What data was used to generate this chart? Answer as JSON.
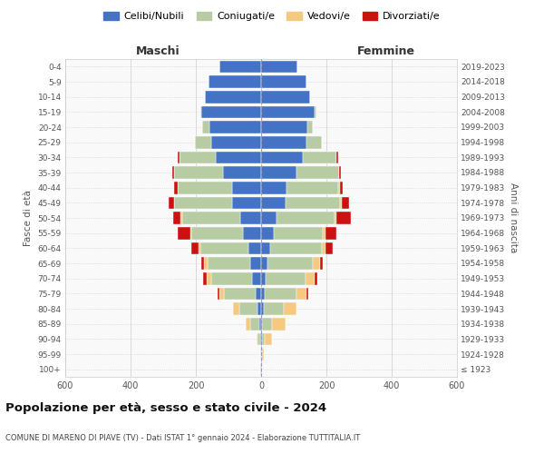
{
  "age_groups": [
    "100+",
    "95-99",
    "90-94",
    "85-89",
    "80-84",
    "75-79",
    "70-74",
    "65-69",
    "60-64",
    "55-59",
    "50-54",
    "45-49",
    "40-44",
    "35-39",
    "30-34",
    "25-29",
    "20-24",
    "15-19",
    "10-14",
    "5-9",
    "0-4"
  ],
  "birth_years": [
    "≤ 1923",
    "1924-1928",
    "1929-1933",
    "1934-1938",
    "1939-1943",
    "1944-1948",
    "1949-1953",
    "1954-1958",
    "1959-1963",
    "1964-1968",
    "1969-1973",
    "1974-1978",
    "1979-1983",
    "1984-1988",
    "1989-1993",
    "1994-1998",
    "1999-2003",
    "2004-2008",
    "2009-2013",
    "2014-2018",
    "2019-2023"
  ],
  "colors": {
    "celibi": "#4472c4",
    "coniugati": "#b8cca4",
    "vedovi": "#f5c97f",
    "divorziati": "#cc1111"
  },
  "males": {
    "celibi": [
      2,
      1,
      2,
      5,
      10,
      18,
      28,
      32,
      38,
      55,
      65,
      90,
      88,
      118,
      138,
      152,
      158,
      182,
      172,
      162,
      128
    ],
    "coniugati": [
      0,
      2,
      8,
      28,
      58,
      95,
      125,
      132,
      148,
      158,
      178,
      178,
      168,
      148,
      112,
      52,
      22,
      5,
      0,
      0,
      0
    ],
    "vedovi": [
      0,
      1,
      5,
      15,
      18,
      14,
      14,
      10,
      5,
      5,
      5,
      0,
      0,
      0,
      0,
      0,
      0,
      0,
      0,
      0,
      0
    ],
    "divorziati": [
      0,
      0,
      0,
      0,
      0,
      5,
      10,
      10,
      22,
      38,
      22,
      16,
      10,
      5,
      5,
      0,
      0,
      0,
      0,
      0,
      0
    ]
  },
  "females": {
    "celibi": [
      1,
      1,
      2,
      4,
      8,
      10,
      15,
      20,
      28,
      38,
      48,
      75,
      78,
      108,
      128,
      138,
      142,
      165,
      150,
      140,
      112
    ],
    "coniugati": [
      0,
      2,
      10,
      28,
      62,
      98,
      122,
      138,
      158,
      152,
      178,
      168,
      158,
      132,
      102,
      48,
      16,
      5,
      0,
      0,
      0
    ],
    "vedovi": [
      1,
      4,
      22,
      42,
      38,
      32,
      28,
      22,
      12,
      8,
      5,
      5,
      5,
      0,
      0,
      0,
      0,
      0,
      0,
      0,
      0
    ],
    "divorziati": [
      0,
      0,
      0,
      0,
      0,
      5,
      8,
      10,
      22,
      32,
      45,
      22,
      10,
      5,
      5,
      0,
      0,
      0,
      0,
      0,
      0
    ]
  },
  "title": "Popolazione per età, sesso e stato civile - 2024",
  "subtitle": "COMUNE DI MARENO DI PIAVE (TV) - Dati ISTAT 1° gennaio 2024 - Elaborazione TUTTITALIA.IT",
  "xlabel_left": "Maschi",
  "xlabel_right": "Femmine",
  "ylabel_left": "Fasce di età",
  "ylabel_right": "Anni di nascita",
  "xlim": 600,
  "legend_labels": [
    "Celibi/Nubili",
    "Coniugati/e",
    "Vedovi/e",
    "Divorziati/e"
  ],
  "background_color": "#f9f9f9"
}
